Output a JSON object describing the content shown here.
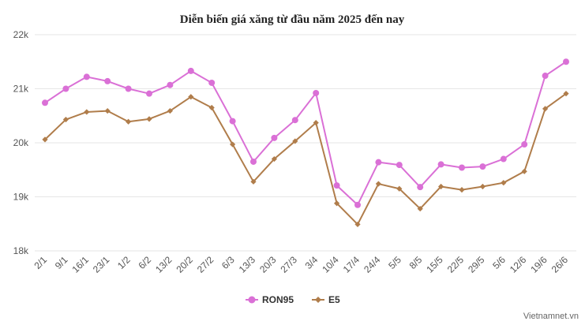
{
  "chart_data": {
    "type": "line",
    "title": "Diễn biến giá xăng từ đầu năm 2025 đến nay",
    "xlabel": "",
    "ylabel": "",
    "categories": [
      "2/1",
      "9/1",
      "16/1",
      "23/1",
      "1/2",
      "6/2",
      "13/2",
      "20/2",
      "27/2",
      "6/3",
      "13/3",
      "20/3",
      "27/3",
      "3/4",
      "10/4",
      "17/4",
      "24/4",
      "5/5",
      "8/5",
      "15/5",
      "22/5",
      "29/5",
      "5/6",
      "12/6",
      "19/6",
      "26/6"
    ],
    "ylim": [
      18000,
      22000
    ],
    "yticks": [
      18000,
      19000,
      20000,
      21000,
      22000
    ],
    "ytick_labels": [
      "18k",
      "19k",
      "20k",
      "21k",
      "22k"
    ],
    "grid": true,
    "legend_position": "bottom-center",
    "series": [
      {
        "name": "RON95",
        "color": "#da70d6",
        "marker": "circle",
        "values": [
          20740,
          21000,
          21220,
          21140,
          21000,
          20910,
          21070,
          21330,
          21110,
          20400,
          19650,
          20090,
          20420,
          20920,
          19210,
          18850,
          19640,
          19590,
          19180,
          19600,
          19540,
          19560,
          19700,
          19970,
          21240,
          21500
        ]
      },
      {
        "name": "E5",
        "color": "#b07d4b",
        "marker": "diamond",
        "values": [
          20060,
          20430,
          20570,
          20590,
          20390,
          20440,
          20590,
          20850,
          20650,
          19970,
          19280,
          19700,
          20030,
          20370,
          18880,
          18490,
          19240,
          19150,
          18780,
          19190,
          19130,
          19190,
          19260,
          19470,
          20630,
          20910
        ]
      }
    ],
    "credit": "Vietnamnet.vn"
  }
}
